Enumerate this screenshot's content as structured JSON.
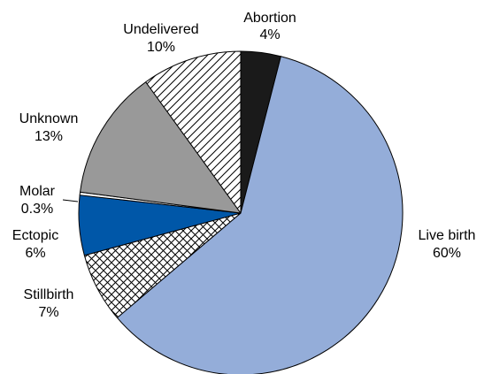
{
  "chart_data": {
    "type": "pie",
    "start_angle_deg": 0,
    "direction": "clockwise",
    "slices": [
      {
        "label": "Abortion",
        "value": 4,
        "value_label": "4%",
        "color": "#1a1a1a",
        "pattern": "solid"
      },
      {
        "label": "Live birth",
        "value": 60,
        "value_label": "60%",
        "color": "#94add9",
        "pattern": "solid"
      },
      {
        "label": "Stillbirth",
        "value": 7,
        "value_label": "7%",
        "color": "#ffffff",
        "pattern": "crosshatch"
      },
      {
        "label": "Ectopic",
        "value": 6,
        "value_label": "6%",
        "color": "#0057a8",
        "pattern": "solid"
      },
      {
        "label": "Molar",
        "value": 0.3,
        "value_label": "0.3%",
        "color": "#ffffff",
        "pattern": "solid"
      },
      {
        "label": "Unknown",
        "value": 13,
        "value_label": "13%",
        "color": "#999999",
        "pattern": "solid"
      },
      {
        "label": "Undelivered",
        "value": 10,
        "value_label": "10%",
        "color": "#ffffff",
        "pattern": "diagonal"
      }
    ]
  }
}
